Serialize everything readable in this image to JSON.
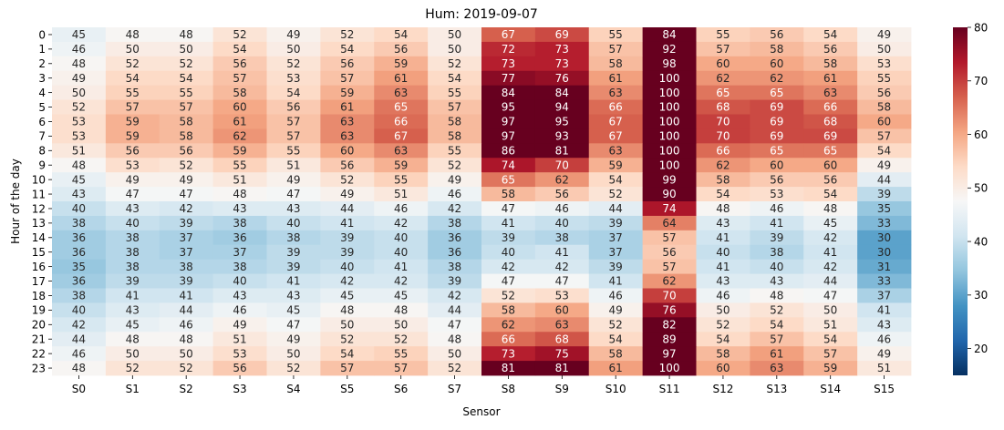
{
  "chart_data": {
    "type": "heatmap",
    "title": "Hum: 2019-09-07",
    "xlabel": "Sensor",
    "ylabel": "Hour of the day",
    "colormap": "RdBu_r",
    "vmin": 15,
    "vmax": 80,
    "colorbar_ticks": [
      20,
      30,
      40,
      50,
      60,
      70,
      80
    ],
    "x_categories": [
      "S0",
      "S1",
      "S2",
      "S3",
      "S4",
      "S5",
      "S6",
      "S7",
      "S8",
      "S9",
      "S10",
      "S11",
      "S12",
      "S13",
      "S14",
      "S15"
    ],
    "y_categories": [
      "0",
      "1",
      "2",
      "3",
      "4",
      "5",
      "6",
      "7",
      "8",
      "9",
      "10",
      "11",
      "12",
      "13",
      "14",
      "15",
      "16",
      "17",
      "18",
      "19",
      "20",
      "21",
      "22",
      "23"
    ],
    "values": [
      [
        45,
        48,
        48,
        52,
        49,
        52,
        54,
        50,
        67,
        69,
        55,
        84,
        55,
        56,
        54,
        49
      ],
      [
        46,
        50,
        50,
        54,
        50,
        54,
        56,
        50,
        72,
        73,
        57,
        92,
        57,
        58,
        56,
        50
      ],
      [
        48,
        52,
        52,
        56,
        52,
        56,
        59,
        52,
        73,
        73,
        58,
        98,
        60,
        60,
        58,
        53
      ],
      [
        49,
        54,
        54,
        57,
        53,
        57,
        61,
        54,
        77,
        76,
        61,
        100,
        62,
        62,
        61,
        55
      ],
      [
        50,
        55,
        55,
        58,
        54,
        59,
        63,
        55,
        84,
        84,
        63,
        100,
        65,
        65,
        63,
        56
      ],
      [
        52,
        57,
        57,
        60,
        56,
        61,
        65,
        57,
        95,
        94,
        66,
        100,
        68,
        69,
        66,
        58
      ],
      [
        53,
        59,
        58,
        61,
        57,
        63,
        66,
        58,
        97,
        95,
        67,
        100,
        70,
        69,
        68,
        60
      ],
      [
        53,
        59,
        58,
        62,
        57,
        63,
        67,
        58,
        97,
        93,
        67,
        100,
        70,
        69,
        69,
        57
      ],
      [
        51,
        56,
        56,
        59,
        55,
        60,
        63,
        55,
        86,
        81,
        63,
        100,
        66,
        65,
        65,
        54
      ],
      [
        48,
        53,
        52,
        55,
        51,
        56,
        59,
        52,
        74,
        70,
        59,
        100,
        62,
        60,
        60,
        49
      ],
      [
        45,
        49,
        49,
        51,
        49,
        52,
        55,
        49,
        65,
        62,
        54,
        99,
        58,
        56,
        56,
        44
      ],
      [
        43,
        47,
        47,
        48,
        47,
        49,
        51,
        46,
        58,
        56,
        52,
        90,
        54,
        53,
        54,
        39
      ],
      [
        40,
        43,
        42,
        43,
        43,
        44,
        46,
        42,
        47,
        46,
        44,
        74,
        48,
        46,
        48,
        35
      ],
      [
        38,
        40,
        39,
        38,
        40,
        41,
        42,
        38,
        41,
        40,
        39,
        64,
        43,
        41,
        45,
        33
      ],
      [
        36,
        38,
        37,
        36,
        38,
        39,
        40,
        36,
        39,
        38,
        37,
        57,
        41,
        39,
        42,
        30
      ],
      [
        36,
        38,
        37,
        37,
        39,
        39,
        40,
        36,
        40,
        41,
        37,
        56,
        40,
        38,
        41,
        30
      ],
      [
        35,
        38,
        38,
        38,
        39,
        40,
        41,
        38,
        42,
        42,
        39,
        57,
        41,
        40,
        42,
        31
      ],
      [
        36,
        39,
        39,
        40,
        41,
        42,
        42,
        39,
        47,
        47,
        41,
        62,
        43,
        43,
        44,
        33
      ],
      [
        38,
        41,
        41,
        43,
        43,
        45,
        45,
        42,
        52,
        53,
        46,
        70,
        46,
        48,
        47,
        37
      ],
      [
        40,
        43,
        44,
        46,
        45,
        48,
        48,
        44,
        58,
        60,
        49,
        76,
        50,
        52,
        50,
        41
      ],
      [
        42,
        45,
        46,
        49,
        47,
        50,
        50,
        47,
        62,
        63,
        52,
        82,
        52,
        54,
        51,
        43
      ],
      [
        44,
        48,
        48,
        51,
        49,
        52,
        52,
        48,
        66,
        68,
        54,
        89,
        54,
        57,
        54,
        46
      ],
      [
        46,
        50,
        50,
        53,
        50,
        54,
        55,
        50,
        73,
        75,
        58,
        97,
        58,
        61,
        57,
        49
      ],
      [
        48,
        52,
        52,
        56,
        52,
        57,
        57,
        52,
        81,
        81,
        61,
        100,
        60,
        63,
        59,
        51
      ]
    ]
  }
}
